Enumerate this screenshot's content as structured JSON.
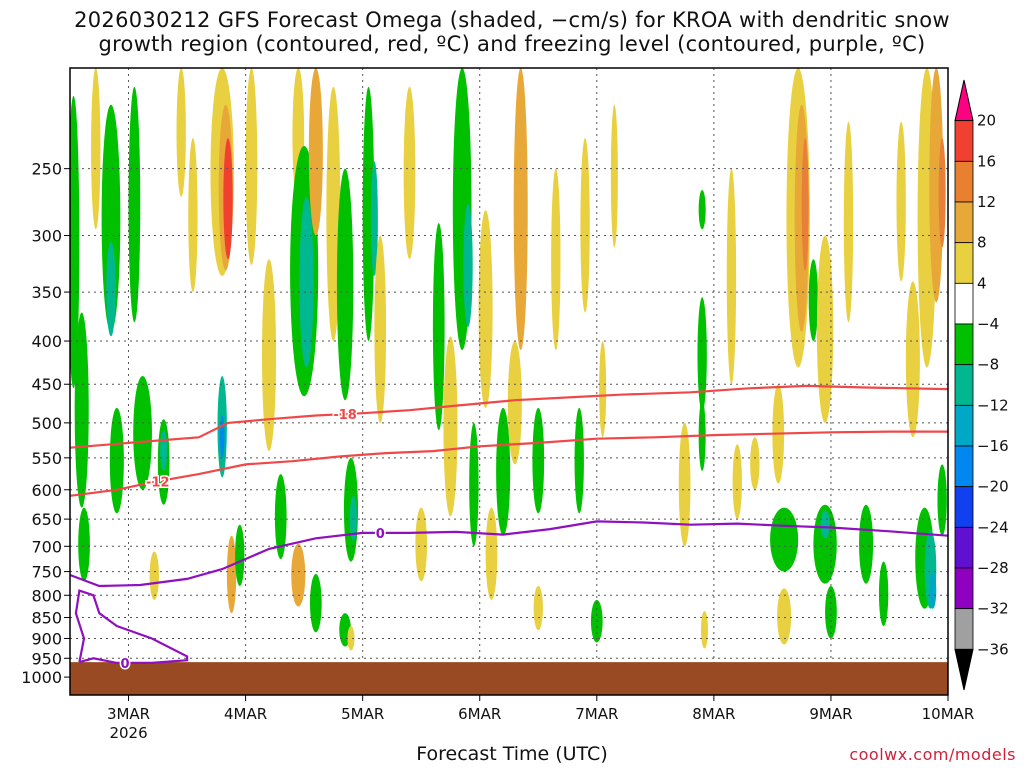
{
  "chart_data": {
    "type": "heatmap",
    "title_lines": [
      "2026030212 GFS Forecast Omega (shaded, −cm/s) for KROA with dendritic snow",
      "growth region (contoured, red, ºC) and freezing level (contoured, purple, ºC)"
    ],
    "xlabel": "Forecast Time (UTC)",
    "credit": "coolwx.com/models",
    "ylabel": "",
    "y_scale": "log",
    "y_reversed": true,
    "y_range_hpa": [
      1050,
      190
    ],
    "y_ticks": [
      250,
      300,
      350,
      400,
      450,
      500,
      550,
      600,
      650,
      700,
      750,
      800,
      850,
      900,
      950,
      1000
    ],
    "x_range_days": [
      2.5,
      10.0
    ],
    "x_ticks": [
      {
        "day": 3,
        "label": "3MAR",
        "sublabel": "2026"
      },
      {
        "day": 4,
        "label": "4MAR",
        "sublabel": ""
      },
      {
        "day": 5,
        "label": "5MAR",
        "sublabel": ""
      },
      {
        "day": 6,
        "label": "6MAR",
        "sublabel": ""
      },
      {
        "day": 7,
        "label": "7MAR",
        "sublabel": ""
      },
      {
        "day": 8,
        "label": "8MAR",
        "sublabel": ""
      },
      {
        "day": 9,
        "label": "9MAR",
        "sublabel": ""
      },
      {
        "day": 10,
        "label": "10MAR",
        "sublabel": ""
      }
    ],
    "grid": true,
    "colorbar": {
      "labels": [
        "20",
        "16",
        "12",
        "8",
        "4",
        "−4",
        "−8",
        "−12",
        "−16",
        "−20",
        "−24",
        "−28",
        "−32",
        "−36"
      ],
      "colors": [
        "#ff0080",
        "#f04030",
        "#e88030",
        "#e8a838",
        "#e8d040",
        "#ffffff",
        "#00c000",
        "#00b890",
        "#00a8c8",
        "#0088f0",
        "#1040f0",
        "#6010d0",
        "#9000c0",
        "#a0a0a0",
        "#000000"
      ]
    },
    "shading_blobs": [
      {
        "day": 2.53,
        "p": 330,
        "dd": 0.05,
        "dp": 250,
        "c": "#00c000"
      },
      {
        "day": 2.6,
        "p": 500,
        "dd": 0.06,
        "dp": 260,
        "c": "#00c000"
      },
      {
        "day": 2.62,
        "p": 700,
        "dd": 0.05,
        "dp": 140,
        "c": "#00c000"
      },
      {
        "day": 2.72,
        "p": 240,
        "dd": 0.04,
        "dp": 110,
        "c": "#e8d040"
      },
      {
        "day": 2.85,
        "p": 300,
        "dd": 0.08,
        "dp": 180,
        "c": "#00c000"
      },
      {
        "day": 2.85,
        "p": 350,
        "dd": 0.04,
        "dp": 90,
        "c": "#00b890"
      },
      {
        "day": 2.9,
        "p": 560,
        "dd": 0.06,
        "dp": 160,
        "c": "#00c000"
      },
      {
        "day": 3.05,
        "p": 290,
        "dd": 0.05,
        "dp": 180,
        "c": "#00c000"
      },
      {
        "day": 3.12,
        "p": 520,
        "dd": 0.08,
        "dp": 160,
        "c": "#00c000"
      },
      {
        "day": 3.3,
        "p": 560,
        "dd": 0.05,
        "dp": 130,
        "c": "#00c000"
      },
      {
        "day": 3.3,
        "p": 540,
        "dd": 0.03,
        "dp": 60,
        "c": "#00b890"
      },
      {
        "day": 3.22,
        "p": 760,
        "dd": 0.04,
        "dp": 100,
        "c": "#e8d040"
      },
      {
        "day": 3.45,
        "p": 230,
        "dd": 0.04,
        "dp": 80,
        "c": "#e8d040"
      },
      {
        "day": 3.55,
        "p": 290,
        "dd": 0.04,
        "dp": 120,
        "c": "#e8d040"
      },
      {
        "day": 3.8,
        "p": 260,
        "dd": 0.1,
        "dp": 150,
        "c": "#e8d040"
      },
      {
        "day": 3.83,
        "p": 270,
        "dd": 0.06,
        "dp": 120,
        "c": "#e8a838"
      },
      {
        "day": 3.85,
        "p": 275,
        "dd": 0.04,
        "dp": 90,
        "c": "#f04030"
      },
      {
        "day": 3.8,
        "p": 510,
        "dd": 0.04,
        "dp": 140,
        "c": "#00b890"
      },
      {
        "day": 3.8,
        "p": 520,
        "dd": 0.02,
        "dp": 60,
        "c": "#0088f0"
      },
      {
        "day": 3.88,
        "p": 760,
        "dd": 0.04,
        "dp": 160,
        "c": "#e8a838"
      },
      {
        "day": 3.95,
        "p": 720,
        "dd": 0.04,
        "dp": 120,
        "c": "#00c000"
      },
      {
        "day": 4.05,
        "p": 250,
        "dd": 0.05,
        "dp": 150,
        "c": "#e8d040"
      },
      {
        "day": 4.2,
        "p": 430,
        "dd": 0.06,
        "dp": 220,
        "c": "#e8d040"
      },
      {
        "day": 4.3,
        "p": 650,
        "dd": 0.05,
        "dp": 150,
        "c": "#00c000"
      },
      {
        "day": 4.45,
        "p": 220,
        "dd": 0.05,
        "dp": 110,
        "c": "#e8d040"
      },
      {
        "day": 4.5,
        "p": 350,
        "dd": 0.12,
        "dp": 230,
        "c": "#00c000"
      },
      {
        "day": 4.52,
        "p": 350,
        "dd": 0.06,
        "dp": 160,
        "c": "#00b890"
      },
      {
        "day": 4.45,
        "p": 760,
        "dd": 0.06,
        "dp": 130,
        "c": "#e8a838"
      },
      {
        "day": 4.6,
        "p": 820,
        "dd": 0.05,
        "dp": 130,
        "c": "#00c000"
      },
      {
        "day": 4.6,
        "p": 240,
        "dd": 0.06,
        "dp": 120,
        "c": "#e8a838"
      },
      {
        "day": 4.75,
        "p": 300,
        "dd": 0.06,
        "dp": 200,
        "c": "#e8d040"
      },
      {
        "day": 4.85,
        "p": 360,
        "dd": 0.07,
        "dp": 220,
        "c": "#00c000"
      },
      {
        "day": 4.9,
        "p": 640,
        "dd": 0.06,
        "dp": 180,
        "c": "#00c000"
      },
      {
        "day": 4.92,
        "p": 650,
        "dd": 0.03,
        "dp": 80,
        "c": "#00b890"
      },
      {
        "day": 5.05,
        "p": 300,
        "dd": 0.05,
        "dp": 200,
        "c": "#00c000"
      },
      {
        "day": 5.1,
        "p": 290,
        "dd": 0.03,
        "dp": 90,
        "c": "#00b890"
      },
      {
        "day": 5.15,
        "p": 400,
        "dd": 0.05,
        "dp": 200,
        "c": "#e8d040"
      },
      {
        "day": 4.85,
        "p": 880,
        "dd": 0.05,
        "dp": 80,
        "c": "#00c000"
      },
      {
        "day": 4.9,
        "p": 900,
        "dd": 0.03,
        "dp": 60,
        "c": "#e8d040"
      },
      {
        "day": 5.4,
        "p": 260,
        "dd": 0.05,
        "dp": 120,
        "c": "#e8d040"
      },
      {
        "day": 5.5,
        "p": 700,
        "dd": 0.05,
        "dp": 140,
        "c": "#e8d040"
      },
      {
        "day": 5.65,
        "p": 400,
        "dd": 0.05,
        "dp": 220,
        "c": "#00c000"
      },
      {
        "day": 5.75,
        "p": 520,
        "dd": 0.06,
        "dp": 250,
        "c": "#e8d040"
      },
      {
        "day": 5.85,
        "p": 300,
        "dd": 0.08,
        "dp": 220,
        "c": "#00c000"
      },
      {
        "day": 5.9,
        "p": 330,
        "dd": 0.04,
        "dp": 110,
        "c": "#00b890"
      },
      {
        "day": 5.95,
        "p": 600,
        "dd": 0.04,
        "dp": 200,
        "c": "#00c000"
      },
      {
        "day": 6.05,
        "p": 380,
        "dd": 0.06,
        "dp": 200,
        "c": "#e8d040"
      },
      {
        "day": 6.1,
        "p": 720,
        "dd": 0.05,
        "dp": 180,
        "c": "#e8d040"
      },
      {
        "day": 6.2,
        "p": 580,
        "dd": 0.06,
        "dp": 200,
        "c": "#00c000"
      },
      {
        "day": 6.3,
        "p": 480,
        "dd": 0.06,
        "dp": 160,
        "c": "#e8d040"
      },
      {
        "day": 6.35,
        "p": 300,
        "dd": 0.06,
        "dp": 220,
        "c": "#e8a838"
      },
      {
        "day": 6.5,
        "p": 560,
        "dd": 0.05,
        "dp": 160,
        "c": "#00c000"
      },
      {
        "day": 6.5,
        "p": 830,
        "dd": 0.04,
        "dp": 100,
        "c": "#e8d040"
      },
      {
        "day": 6.65,
        "p": 330,
        "dd": 0.04,
        "dp": 160,
        "c": "#e8d040"
      },
      {
        "day": 6.85,
        "p": 560,
        "dd": 0.04,
        "dp": 160,
        "c": "#00c000"
      },
      {
        "day": 6.9,
        "p": 300,
        "dd": 0.04,
        "dp": 140,
        "c": "#e8d040"
      },
      {
        "day": 7.0,
        "p": 860,
        "dd": 0.05,
        "dp": 100,
        "c": "#00c000"
      },
      {
        "day": 7.05,
        "p": 460,
        "dd": 0.03,
        "dp": 120,
        "c": "#e8d040"
      },
      {
        "day": 7.15,
        "p": 260,
        "dd": 0.03,
        "dp": 100,
        "c": "#e8d040"
      },
      {
        "day": 7.75,
        "p": 600,
        "dd": 0.05,
        "dp": 200,
        "c": "#e8d040"
      },
      {
        "day": 7.9,
        "p": 420,
        "dd": 0.04,
        "dp": 130,
        "c": "#00c000"
      },
      {
        "day": 7.9,
        "p": 520,
        "dd": 0.03,
        "dp": 100,
        "c": "#00c000"
      },
      {
        "day": 7.9,
        "p": 280,
        "dd": 0.03,
        "dp": 30,
        "c": "#00c000"
      },
      {
        "day": 7.92,
        "p": 880,
        "dd": 0.03,
        "dp": 90,
        "c": "#e8d040"
      },
      {
        "day": 8.15,
        "p": 350,
        "dd": 0.04,
        "dp": 200,
        "c": "#e8d040"
      },
      {
        "day": 8.2,
        "p": 590,
        "dd": 0.04,
        "dp": 120,
        "c": "#e8d040"
      },
      {
        "day": 8.35,
        "p": 560,
        "dd": 0.04,
        "dp": 80,
        "c": "#e8d040"
      },
      {
        "day": 8.55,
        "p": 520,
        "dd": 0.05,
        "dp": 140,
        "c": "#e8d040"
      },
      {
        "day": 8.6,
        "p": 690,
        "dd": 0.12,
        "dp": 120,
        "c": "#00c000"
      },
      {
        "day": 8.72,
        "p": 300,
        "dd": 0.1,
        "dp": 260,
        "c": "#e8d040"
      },
      {
        "day": 8.75,
        "p": 300,
        "dd": 0.06,
        "dp": 180,
        "c": "#e8a838"
      },
      {
        "day": 8.78,
        "p": 280,
        "dd": 0.03,
        "dp": 100,
        "c": "#e8803a"
      },
      {
        "day": 8.6,
        "p": 850,
        "dd": 0.06,
        "dp": 130,
        "c": "#e8d040"
      },
      {
        "day": 8.85,
        "p": 360,
        "dd": 0.04,
        "dp": 80,
        "c": "#00c000"
      },
      {
        "day": 8.95,
        "p": 400,
        "dd": 0.07,
        "dp": 200,
        "c": "#e8d040"
      },
      {
        "day": 8.95,
        "p": 700,
        "dd": 0.1,
        "dp": 150,
        "c": "#00c000"
      },
      {
        "day": 8.95,
        "p": 660,
        "dd": 0.04,
        "dp": 50,
        "c": "#00b890"
      },
      {
        "day": 9.0,
        "p": 840,
        "dd": 0.05,
        "dp": 120,
        "c": "#00c000"
      },
      {
        "day": 9.15,
        "p": 300,
        "dd": 0.04,
        "dp": 160,
        "c": "#e8d040"
      },
      {
        "day": 9.3,
        "p": 700,
        "dd": 0.06,
        "dp": 150,
        "c": "#00c000"
      },
      {
        "day": 9.45,
        "p": 800,
        "dd": 0.04,
        "dp": 140,
        "c": "#00c000"
      },
      {
        "day": 9.6,
        "p": 280,
        "dd": 0.04,
        "dp": 120,
        "c": "#e8d040"
      },
      {
        "day": 9.7,
        "p": 430,
        "dd": 0.06,
        "dp": 180,
        "c": "#e8d040"
      },
      {
        "day": 9.82,
        "p": 300,
        "dd": 0.08,
        "dp": 260,
        "c": "#e8d040"
      },
      {
        "day": 9.9,
        "p": 270,
        "dd": 0.06,
        "dp": 180,
        "c": "#e8a838"
      },
      {
        "day": 9.95,
        "p": 270,
        "dd": 0.03,
        "dp": 80,
        "c": "#e8803a"
      },
      {
        "day": 9.8,
        "p": 730,
        "dd": 0.08,
        "dp": 200,
        "c": "#00c000"
      },
      {
        "day": 9.85,
        "p": 750,
        "dd": 0.05,
        "dp": 160,
        "c": "#00b890"
      },
      {
        "day": 9.87,
        "p": 790,
        "dd": 0.03,
        "dp": 80,
        "c": "#00a8c8"
      },
      {
        "day": 9.95,
        "p": 620,
        "dd": 0.04,
        "dp": 120,
        "c": "#00c000"
      }
    ],
    "contours": [
      {
        "name": "-18",
        "color": "#f04848",
        "label": "-18",
        "label_day": 4.85,
        "points": [
          [
            2.5,
            535
          ],
          [
            3.0,
            528
          ],
          [
            3.6,
            520
          ],
          [
            3.85,
            500
          ],
          [
            4.2,
            495
          ],
          [
            4.6,
            490
          ],
          [
            5.0,
            487
          ],
          [
            5.4,
            483
          ],
          [
            5.8,
            477
          ],
          [
            6.3,
            470
          ],
          [
            6.8,
            466
          ],
          [
            7.2,
            463
          ],
          [
            7.8,
            460
          ],
          [
            8.3,
            455
          ],
          [
            8.8,
            452
          ],
          [
            9.3,
            454
          ],
          [
            10.0,
            456
          ]
        ]
      },
      {
        "name": "-12",
        "color": "#f04848",
        "label": "-12",
        "label_day": 3.25,
        "points": [
          [
            2.5,
            610
          ],
          [
            2.9,
            600
          ],
          [
            3.2,
            588
          ],
          [
            3.6,
            575
          ],
          [
            4.0,
            560
          ],
          [
            4.4,
            555
          ],
          [
            4.8,
            548
          ],
          [
            5.2,
            543
          ],
          [
            5.6,
            540
          ],
          [
            6.0,
            533
          ],
          [
            6.5,
            528
          ],
          [
            7.0,
            522
          ],
          [
            7.5,
            520
          ],
          [
            8.0,
            517
          ],
          [
            8.5,
            515
          ],
          [
            9.0,
            513
          ],
          [
            9.5,
            512
          ],
          [
            10.0,
            512
          ]
        ]
      },
      {
        "name": "0",
        "color": "#9010c0",
        "label": "0",
        "label_day": 5.15,
        "points": [
          [
            2.5,
            757
          ],
          [
            2.75,
            780
          ],
          [
            3.1,
            778
          ],
          [
            3.5,
            765
          ],
          [
            3.8,
            745
          ],
          [
            4.2,
            705
          ],
          [
            4.6,
            685
          ],
          [
            5.0,
            675
          ],
          [
            5.4,
            675
          ],
          [
            5.8,
            673
          ],
          [
            6.2,
            678
          ],
          [
            6.6,
            668
          ],
          [
            7.0,
            654
          ],
          [
            7.4,
            656
          ],
          [
            7.8,
            660
          ],
          [
            8.2,
            658
          ],
          [
            8.6,
            662
          ],
          [
            9.0,
            665
          ],
          [
            9.5,
            672
          ],
          [
            10.0,
            680
          ]
        ]
      },
      {
        "name": "0-lower",
        "color": "#9010c0",
        "label": "0",
        "label_day": 2.97,
        "points": [
          [
            2.58,
            960
          ],
          [
            2.7,
            950
          ],
          [
            2.9,
            962
          ],
          [
            3.2,
            962
          ],
          [
            3.5,
            955
          ],
          [
            3.5,
            945
          ],
          [
            3.2,
            900
          ],
          [
            2.9,
            870
          ],
          [
            2.75,
            840
          ],
          [
            2.7,
            800
          ],
          [
            2.58,
            790
          ],
          [
            2.55,
            840
          ],
          [
            2.62,
            900
          ],
          [
            2.58,
            960
          ]
        ]
      }
    ],
    "ground_level_hpa": 960
  }
}
